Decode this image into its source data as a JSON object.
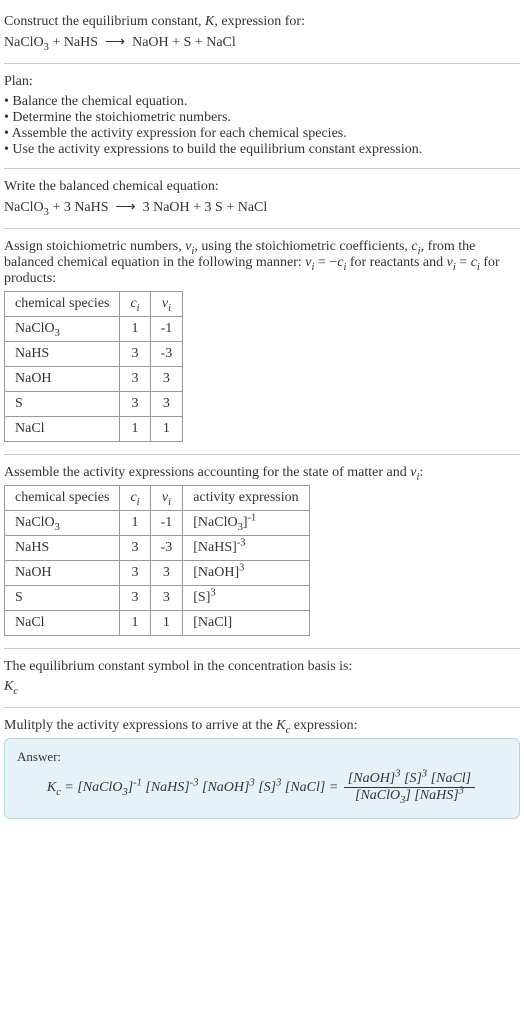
{
  "header": {
    "line1": "Construct the equilibrium constant, <span class=\"ital\">K</span>, expression for:",
    "line2": "NaClO<sub>3</sub> + NaHS &nbsp;&#10230;&nbsp; NaOH + S + NaCl"
  },
  "plan": {
    "title": "Plan:",
    "items": [
      "Balance the chemical equation.",
      "Determine the stoichiometric numbers.",
      "Assemble the activity expression for each chemical species.",
      "Use the activity expressions to build the equilibrium constant expression."
    ]
  },
  "balanced": {
    "title": "Write the balanced chemical equation:",
    "equation": "NaClO<sub>3</sub> + 3 NaHS &nbsp;&#10230;&nbsp; 3 NaOH + 3 S + NaCl"
  },
  "stoich": {
    "intro": "Assign stoichiometric numbers, <span class=\"ital\">&nu;<sub>i</sub></span>, using the stoichiometric coefficients, <span class=\"ital\">c<sub>i</sub></span>, from the balanced chemical equation in the following manner: <span class=\"ital\">&nu;<sub>i</sub></span> = &minus;<span class=\"ital\">c<sub>i</sub></span> for reactants and <span class=\"ital\">&nu;<sub>i</sub></span> = <span class=\"ital\">c<sub>i</sub></span> for products:",
    "headers": [
      "chemical species",
      "<span class=\"ital\">c<sub>i</sub></span>",
      "<span class=\"ital\">&nu;<sub>i</sub></span>"
    ],
    "rows": [
      [
        "NaClO<sub>3</sub>",
        "1",
        "-1"
      ],
      [
        "NaHS",
        "3",
        "-3"
      ],
      [
        "NaOH",
        "3",
        "3"
      ],
      [
        "S",
        "3",
        "3"
      ],
      [
        "NaCl",
        "1",
        "1"
      ]
    ]
  },
  "activity": {
    "intro": "Assemble the activity expressions accounting for the state of matter and <span class=\"ital\">&nu;<sub>i</sub></span>:",
    "headers": [
      "chemical species",
      "<span class=\"ital\">c<sub>i</sub></span>",
      "<span class=\"ital\">&nu;<sub>i</sub></span>",
      "activity expression"
    ],
    "rows": [
      [
        "NaClO<sub>3</sub>",
        "1",
        "-1",
        "[NaClO<sub>3</sub>]<sup>-1</sup>"
      ],
      [
        "NaHS",
        "3",
        "-3",
        "[NaHS]<sup>-3</sup>"
      ],
      [
        "NaOH",
        "3",
        "3",
        "[NaOH]<sup>3</sup>"
      ],
      [
        "S",
        "3",
        "3",
        "[S]<sup>3</sup>"
      ],
      [
        "NaCl",
        "1",
        "1",
        "[NaCl]"
      ]
    ]
  },
  "eqsymbol": {
    "line1": "The equilibrium constant symbol in the concentration basis is:",
    "line2": "<span class=\"ital\">K<sub>c</sub></span>"
  },
  "multiply": {
    "title": "Mulitply the activity expressions to arrive at the <span class=\"ital\">K<sub>c</sub></span> expression:"
  },
  "answer": {
    "label": "Answer:",
    "lhs": "<span class=\"ital\">K<sub>c</sub></span> = [NaClO<sub>3</sub>]<sup>-1</sup> [NaHS]<sup>-3</sup> [NaOH]<sup>3</sup> [S]<sup>3</sup> [NaCl] = ",
    "num": "[NaOH]<sup>3</sup> [S]<sup>3</sup> [NaCl]",
    "den": "[NaClO<sub>3</sub>] [NaHS]<sup>3</sup>"
  },
  "style": {
    "background": "#ffffff",
    "text_color": "#333333",
    "border_color": "#cccccc",
    "table_border": "#999999",
    "answer_bg": "#e6f2f7",
    "answer_border": "#b8d4de",
    "base_fontsize": 14
  }
}
